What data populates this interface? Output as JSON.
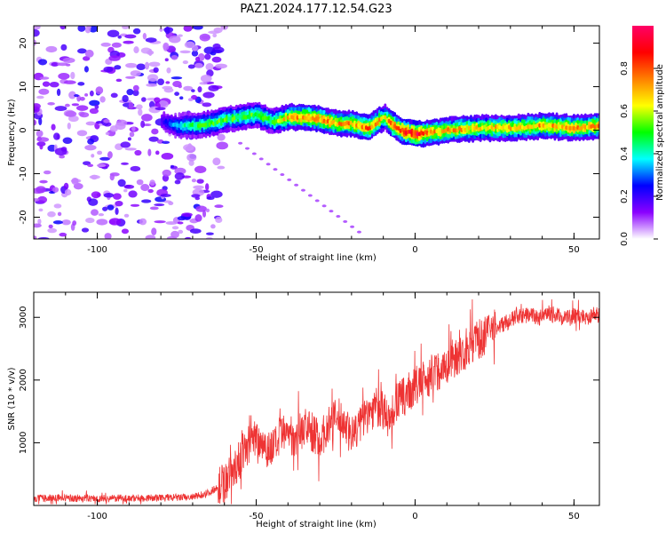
{
  "title": "PAZ1.2024.177.12.54.G23",
  "chart_data": [
    {
      "type": "heatmap",
      "xlabel": "Height of straight line (km)",
      "ylabel": "Frequency (Hz)",
      "xlim": [
        -120,
        58
      ],
      "ylim": [
        -25,
        24
      ],
      "xticks": [
        -100,
        -50,
        0,
        50
      ],
      "xtick_labels": [
        "-100",
        "-50",
        "0",
        "50"
      ],
      "yticks": [
        -20,
        -10,
        0,
        10,
        20
      ],
      "ytick_labels": [
        "-20",
        "-10",
        "0",
        "10",
        "20"
      ],
      "colorbar": {
        "label": "Normalized spectral amplitude",
        "range": [
          0,
          1
        ],
        "ticks": [
          0.0,
          0.2,
          0.4,
          0.6,
          0.8
        ],
        "tick_labels": [
          "0.0",
          "0.2",
          "0.4",
          "0.6",
          "0.8"
        ],
        "colors": [
          "#ffffff",
          "#8a00ff",
          "#0000ff",
          "#00ffff",
          "#00ff00",
          "#ffff00",
          "#ff8000",
          "#ff0000",
          "#ff0066"
        ]
      },
      "ridge": {
        "x": [
          -80,
          -75,
          -70,
          -65,
          -60,
          -55,
          -50,
          -45,
          -40,
          -35,
          -30,
          -25,
          -20,
          -15,
          -12,
          -10,
          -8,
          -5,
          0,
          5,
          10,
          20,
          30,
          40,
          50,
          58
        ],
        "freq": [
          2,
          1,
          1,
          1.5,
          2.5,
          3,
          3.5,
          2,
          3,
          3,
          2.5,
          1.5,
          1.5,
          0.5,
          2,
          3,
          1.5,
          0,
          -1,
          -0.5,
          0,
          0.5,
          0.5,
          1,
          0.5,
          1
        ],
        "peak_amplitude": [
          0.2,
          0.35,
          0.45,
          0.5,
          0.5,
          0.5,
          0.5,
          0.5,
          0.7,
          0.75,
          0.75,
          0.7,
          0.7,
          0.75,
          0.7,
          0.6,
          0.75,
          0.8,
          0.9,
          0.7,
          0.7,
          0.65,
          0.65,
          0.7,
          0.7,
          0.7
        ]
      },
      "noise_region": {
        "x": [
          -120,
          -60
        ],
        "freq": [
          -25,
          24
        ],
        "amplitude_range": [
          0.05,
          0.25
        ]
      }
    },
    {
      "type": "line",
      "xlabel": "Height of straight line (km)",
      "ylabel": "SNR (10 * v/v)",
      "xlim": [
        -120,
        58
      ],
      "ylim": [
        0,
        3400
      ],
      "xticks": [
        -100,
        -50,
        0,
        50
      ],
      "xtick_labels": [
        "-100",
        "-50",
        "0",
        "50"
      ],
      "yticks": [
        1000,
        2000,
        3000
      ],
      "ytick_labels": [
        "1000",
        "2000",
        "3000"
      ],
      "color": "#ee3333",
      "series": [
        {
          "x": [
            -120,
            -110,
            -100,
            -90,
            -80,
            -70,
            -65,
            -62,
            -60,
            -58,
            -56,
            -54,
            -52,
            -50,
            -48,
            -46,
            -44,
            -42,
            -40,
            -38,
            -36,
            -34,
            -32,
            -30,
            -28,
            -26,
            -24,
            -22,
            -20,
            -18,
            -16,
            -14,
            -12,
            -10,
            -8,
            -6,
            -4,
            -2,
            0,
            2,
            4,
            6,
            8,
            10,
            12,
            14,
            16,
            18,
            20,
            22,
            24,
            26,
            28,
            30,
            32,
            34,
            36,
            38,
            40,
            42,
            44,
            46,
            48,
            50,
            52,
            54,
            56,
            58
          ],
          "values": [
            110,
            120,
            110,
            115,
            120,
            130,
            200,
            300,
            380,
            500,
            650,
            850,
            1000,
            1100,
            1000,
            900,
            950,
            1100,
            1150,
            1100,
            1200,
            1250,
            1150,
            1050,
            1200,
            1350,
            1400,
            1300,
            1100,
            1250,
            1400,
            1500,
            1600,
            1500,
            1350,
            1650,
            1700,
            1800,
            1900,
            1950,
            2050,
            2150,
            2150,
            2250,
            2350,
            2400,
            2450,
            2600,
            2650,
            2700,
            2800,
            2850,
            2900,
            2950,
            3000,
            3020,
            3050,
            3000,
            3000,
            3030,
            3050,
            3000,
            3000,
            3020,
            3030,
            3000,
            3050,
            3020
          ]
        }
      ]
    }
  ]
}
